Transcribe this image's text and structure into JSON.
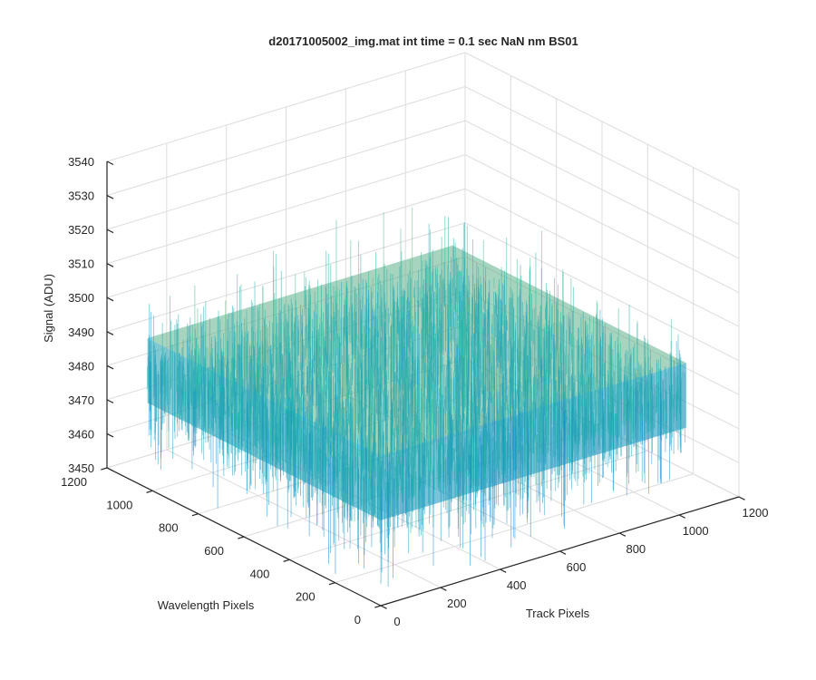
{
  "chart_data": {
    "type": "surface",
    "title": "d20171005002_img.mat int time = 0.1 sec  NaN nm BS01",
    "xlabel": "Track Pixels",
    "ylabel": "Wavelength Pixels",
    "zlabel": "Signal (ADU)",
    "xlim": [
      0,
      1200
    ],
    "ylim": [
      0,
      1200
    ],
    "zlim": [
      3450,
      3540
    ],
    "x_ticks": [
      "0",
      "200",
      "400",
      "600",
      "800",
      "1000",
      "1200"
    ],
    "y_ticks": [
      "0",
      "200",
      "400",
      "600",
      "800",
      "1000",
      "1200"
    ],
    "z_ticks": [
      "3450",
      "3460",
      "3470",
      "3480",
      "3490",
      "3500",
      "3510",
      "3520",
      "3530",
      "3540"
    ],
    "data_extent": {
      "x": [
        1,
        1024
      ],
      "y": [
        1,
        1024
      ]
    },
    "signal_mean": 3484,
    "signal_range": [
      3455,
      3530
    ],
    "colormap": "parula",
    "grid": true,
    "colors": {
      "low": "#0a7fd6",
      "mid": "#2bb7a5",
      "high": "#e0c23c",
      "axis": "#262626",
      "grid": "#dcdcdc"
    }
  }
}
